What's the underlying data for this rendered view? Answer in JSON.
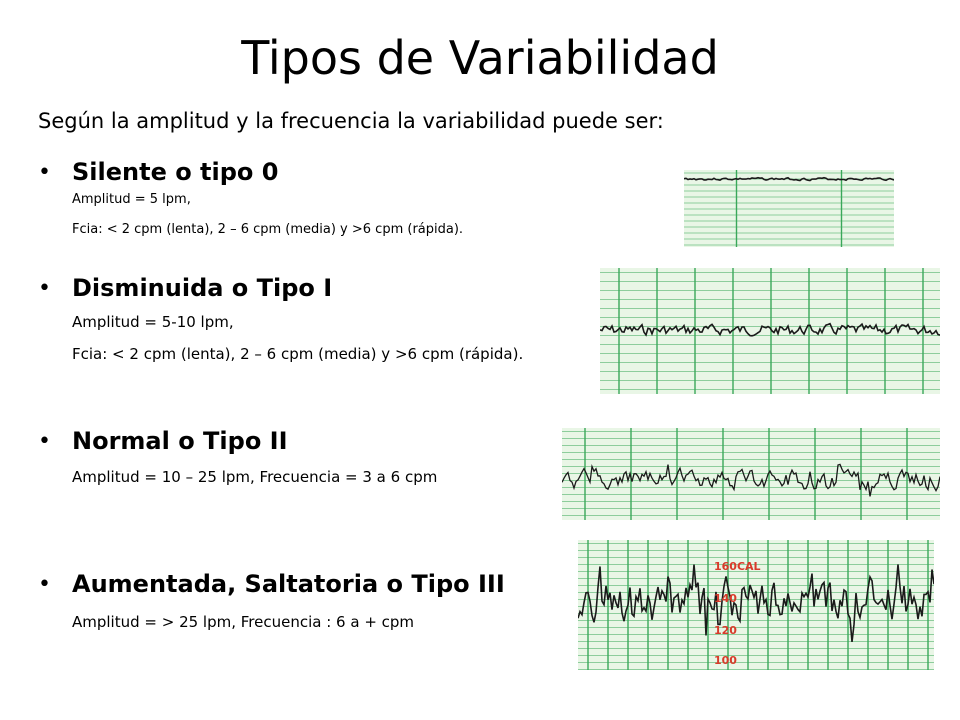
{
  "slide": {
    "title": "Tipos de Variabilidad",
    "subtitle": "Según la amplitud y la frecuencia la variabilidad puede ser:"
  },
  "sections": [
    {
      "heading": "Silente o tipo 0",
      "lines": [
        "Amplitud = 5 lpm,",
        "Fcia: < 2 cpm (lenta),  2 – 6 cpm (media) y  >6 cpm (rápida)."
      ]
    },
    {
      "heading": "Disminuida o Tipo I",
      "lines": [
        "Amplitud = 5-10 lpm,",
        " Fcia: < 2 cpm (lenta),  2 – 6 cpm (media)  y  >6 cpm (rápida)."
      ]
    },
    {
      "heading": "Normal o Tipo II",
      "lines": [
        "Amplitud = 10 – 25 lpm, Frecuencia = 3 a 6 cpm"
      ]
    },
    {
      "heading": "Aumentada, Saltatoria o Tipo III",
      "lines": [
        "Amplitud = > 25 lpm, Frecuencia : 6 a + cpm"
      ]
    }
  ],
  "strip_labels": [
    "160CAL",
    "140",
    "120",
    "100"
  ],
  "colors": {
    "grid_green": "#3aa85a",
    "strip_bg": "#e9f6e6",
    "trace": "#1a1a1a",
    "label_red": "#d83a2a"
  }
}
